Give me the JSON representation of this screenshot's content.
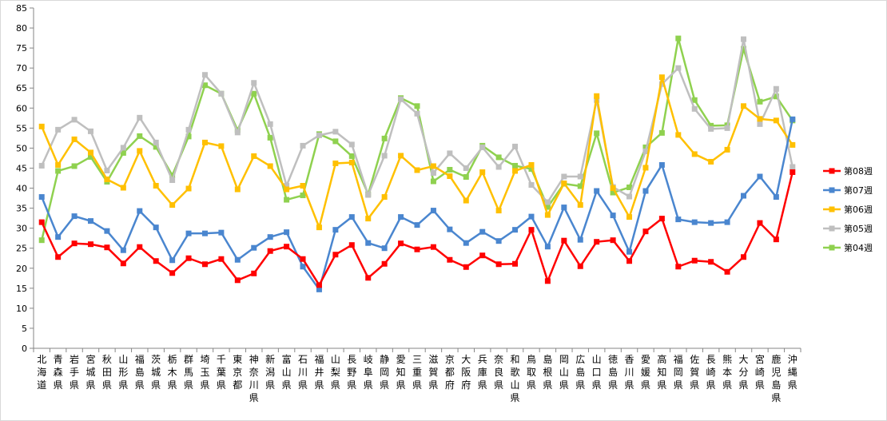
{
  "chart_data": {
    "type": "line",
    "title": "",
    "xlabel": "",
    "ylabel": "",
    "ylim": [
      0,
      85
    ],
    "ytick_step": 5,
    "grid": false,
    "legend_position": "right",
    "categories": [
      "北海道",
      "青森県",
      "岩手県",
      "宮城県",
      "秋田県",
      "山形県",
      "福島県",
      "茨城県",
      "栃木県",
      "群馬県",
      "埼玉県",
      "千葉県",
      "東京都",
      "神奈川県",
      "新潟県",
      "富山県",
      "石川県",
      "福井県",
      "山梨県",
      "長野県",
      "岐阜県",
      "静岡県",
      "愛知県",
      "三重県",
      "滋賀県",
      "京都府",
      "大阪府",
      "兵庫県",
      "奈良県",
      "和歌山県",
      "鳥取県",
      "島根県",
      "岡山県",
      "広島県",
      "山口県",
      "徳島県",
      "香川県",
      "愛媛県",
      "高知県",
      "福岡県",
      "佐賀県",
      "長崎県",
      "熊本県",
      "大分県",
      "宮崎県",
      "鹿児島県",
      "沖縄県"
    ],
    "series": [
      {
        "name": "第08週",
        "color": "#ff0000",
        "marker": "square",
        "values": [
          31.5,
          22.8,
          26.2,
          26.0,
          25.2,
          21.2,
          25.3,
          21.8,
          18.8,
          22.5,
          21.0,
          22.3,
          17.0,
          18.7,
          24.3,
          25.4,
          22.3,
          15.8,
          23.4,
          25.8,
          17.6,
          21.1,
          26.2,
          24.7,
          25.3,
          22.1,
          20.3,
          23.2,
          21.0,
          21.1,
          29.6,
          16.8,
          26.9,
          20.5,
          26.6,
          27.0,
          21.8,
          29.2,
          32.4,
          20.4,
          21.9,
          21.6,
          19.1,
          22.8,
          31.3,
          27.2,
          44.0
        ]
      },
      {
        "name": "第07週",
        "color": "#4a86cf",
        "marker": "square",
        "values": [
          37.8,
          27.8,
          33.0,
          31.8,
          29.3,
          24.5,
          34.3,
          30.2,
          22.0,
          28.7,
          28.7,
          28.9,
          22.1,
          25.1,
          27.8,
          29.0,
          20.4,
          14.7,
          29.6,
          32.8,
          26.3,
          25.0,
          32.8,
          30.8,
          34.4,
          29.7,
          26.3,
          29.1,
          26.8,
          29.6,
          32.9,
          25.4,
          35.2,
          27.1,
          39.3,
          33.2,
          24.1,
          39.3,
          45.8,
          32.2,
          31.5,
          31.3,
          31.5,
          38.1,
          42.9,
          37.8,
          57.2
        ]
      },
      {
        "name": "第06週",
        "color": "#ffc000",
        "marker": "square",
        "values": [
          55.4,
          45.8,
          52.2,
          48.9,
          42.2,
          40.1,
          49.3,
          40.6,
          35.8,
          39.9,
          51.4,
          50.5,
          39.7,
          48.0,
          45.5,
          39.7,
          40.6,
          30.2,
          46.2,
          46.4,
          32.4,
          37.8,
          48.1,
          44.5,
          45.5,
          43.0,
          36.9,
          44.0,
          34.4,
          44.3,
          45.8,
          33.3,
          41.2,
          35.8,
          63.0,
          40.0,
          32.8,
          45.1,
          67.7,
          53.3,
          48.5,
          46.6,
          49.6,
          60.5,
          57.3,
          56.9,
          50.8
        ]
      },
      {
        "name": "第05週",
        "color": "#bfbfbf",
        "marker": "square",
        "values": [
          45.6,
          54.6,
          57.1,
          54.2,
          44.4,
          50.1,
          57.6,
          51.4,
          42.0,
          54.6,
          68.3,
          63.6,
          53.9,
          66.3,
          56.0,
          40.6,
          50.6,
          53.2,
          54.1,
          50.9,
          38.3,
          48.1,
          62.2,
          58.6,
          43.8,
          48.7,
          45.0,
          50.2,
          45.3,
          50.4,
          40.8,
          36.5,
          42.9,
          42.9,
          62.0,
          40.3,
          37.9,
          49.2,
          66.0,
          70.0,
          59.8,
          54.8,
          55.0,
          77.2,
          56.0,
          64.8,
          45.3
        ]
      },
      {
        "name": "第04週",
        "color": "#8fd14f",
        "marker": "square",
        "values": [
          27.0,
          44.3,
          45.5,
          47.8,
          41.6,
          48.8,
          53.0,
          50.3,
          43.2,
          52.9,
          65.7,
          63.6,
          54.5,
          63.6,
          52.6,
          37.1,
          38.2,
          53.5,
          51.7,
          48.0,
          38.5,
          52.4,
          62.5,
          60.5,
          41.7,
          44.6,
          42.8,
          50.6,
          47.7,
          45.6,
          44.8,
          35.3,
          41.1,
          40.5,
          53.7,
          38.9,
          40.2,
          50.2,
          53.8,
          77.4,
          62.0,
          55.6,
          55.7,
          74.8,
          61.6,
          62.9,
          56.9
        ]
      }
    ]
  }
}
